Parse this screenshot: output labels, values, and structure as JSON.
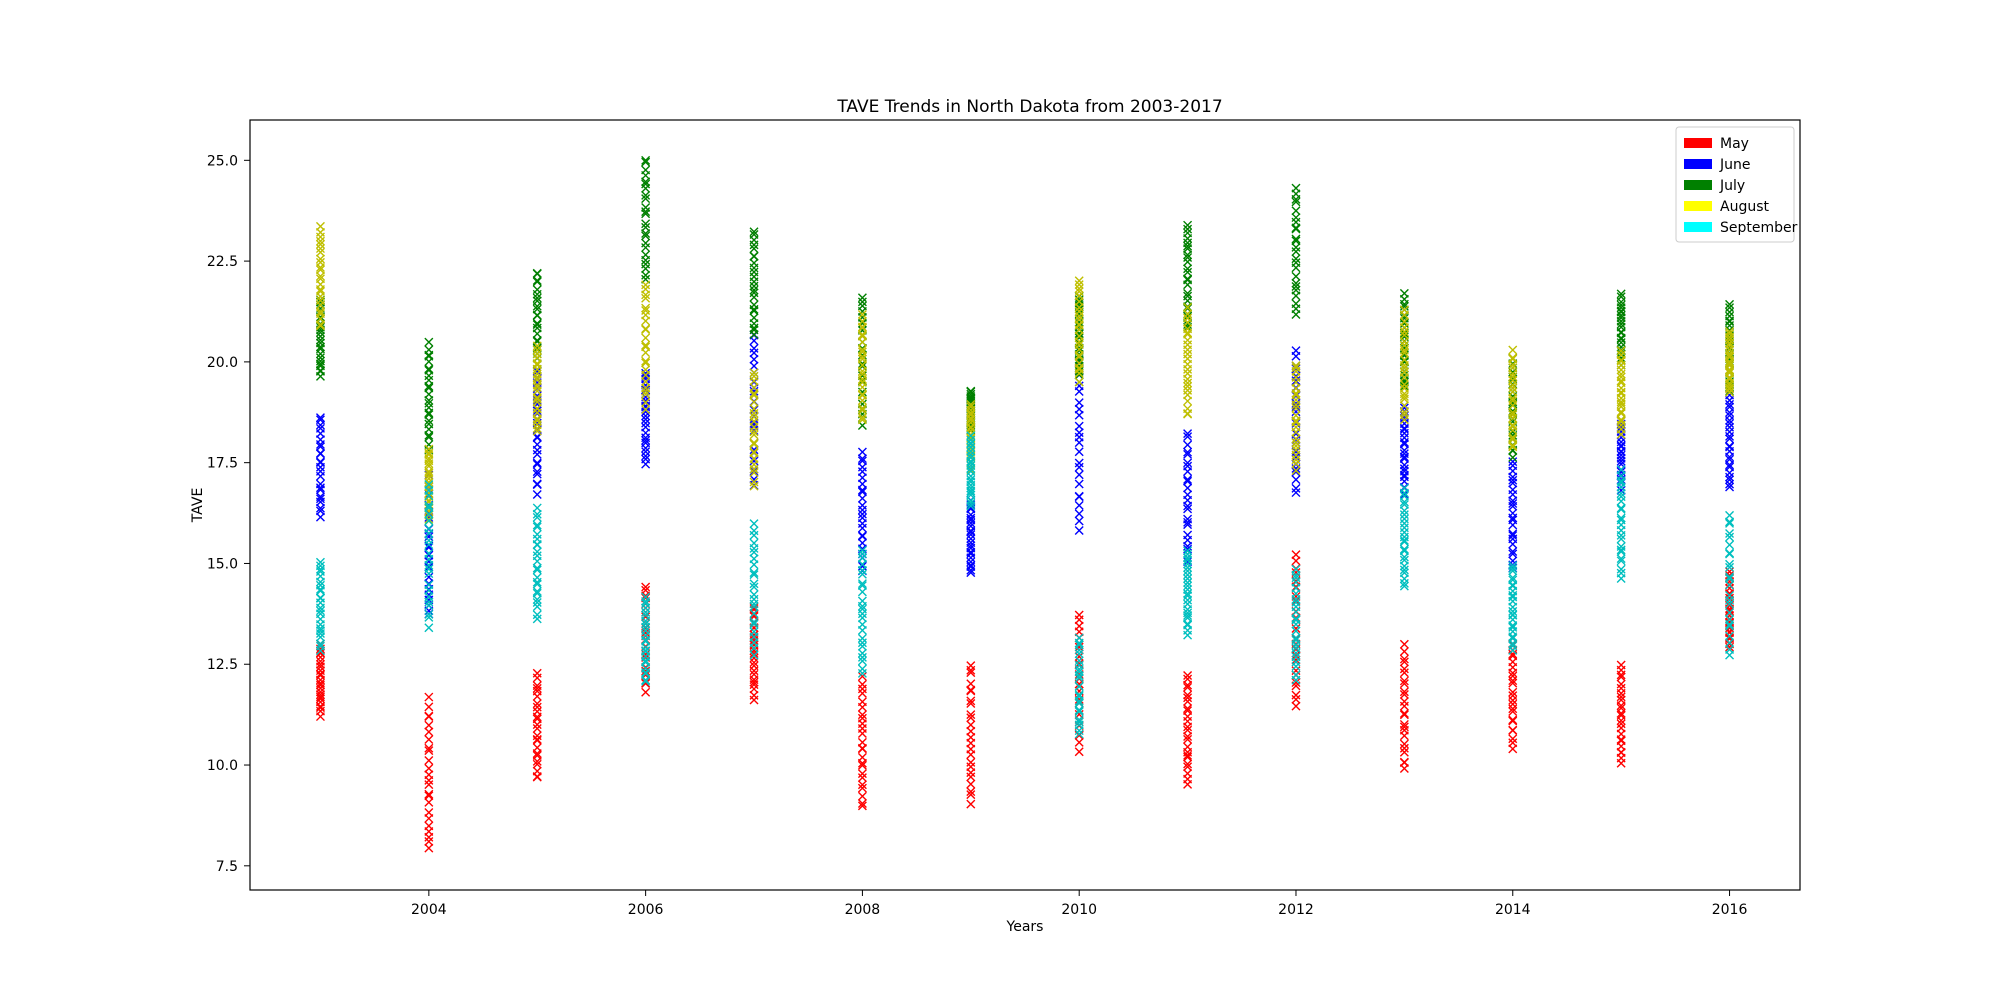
{
  "chart_data": {
    "type": "scatter",
    "title": "TAVE Trends in North Dakota from 2003-2017",
    "xlabel": "Years",
    "ylabel": "TAVE",
    "xlim": [
      2002.35,
      2016.65
    ],
    "ylim": [
      6.9,
      26.0
    ],
    "xticks": [
      2004,
      2006,
      2008,
      2010,
      2012,
      2014,
      2016
    ],
    "yticks": [
      7.5,
      10.0,
      12.5,
      15.0,
      17.5,
      20.0,
      22.5,
      25.0
    ],
    "xtick_labels": [
      "2004",
      "2006",
      "2008",
      "2010",
      "2012",
      "2014",
      "2016"
    ],
    "ytick_labels": [
      "7.5",
      "10.0",
      "12.5",
      "15.0",
      "17.5",
      "20.0",
      "22.5",
      "25.0"
    ],
    "marker": "x",
    "grid": false,
    "legend_position": "top-right",
    "legend": [
      {
        "label": "May",
        "color": "#ff0000"
      },
      {
        "label": "June",
        "color": "#0000ff"
      },
      {
        "label": "July",
        "color": "#008000"
      },
      {
        "label": "August",
        "color": "#ffff00"
      },
      {
        "label": "September",
        "color": "#00ffff"
      }
    ],
    "series": [
      {
        "name": "May",
        "color": "#ff0000",
        "ranges": [
          [
            2003,
            11.2,
            13.0
          ],
          [
            2004,
            7.8,
            11.7
          ],
          [
            2005,
            9.6,
            12.3
          ],
          [
            2006,
            11.8,
            14.5
          ],
          [
            2007,
            11.6,
            14.0
          ],
          [
            2008,
            8.9,
            12.2
          ],
          [
            2009,
            9.0,
            12.6
          ],
          [
            2010,
            10.3,
            13.8
          ],
          [
            2011,
            9.5,
            12.3
          ],
          [
            2012,
            11.3,
            15.3
          ],
          [
            2013,
            9.8,
            13.0
          ],
          [
            2014,
            10.4,
            13.2
          ],
          [
            2015,
            10.0,
            12.5
          ],
          [
            2016,
            12.9,
            14.8
          ]
        ]
      },
      {
        "name": "June",
        "color": "#0000ff",
        "ranges": [
          [
            2003,
            16.1,
            18.7
          ],
          [
            2004,
            13.6,
            17.2
          ],
          [
            2005,
            16.7,
            19.8
          ],
          [
            2006,
            17.4,
            19.8
          ],
          [
            2007,
            16.8,
            20.8
          ],
          [
            2008,
            14.8,
            17.8
          ],
          [
            2009,
            14.7,
            16.6
          ],
          [
            2010,
            15.7,
            20.3
          ],
          [
            2011,
            15.0,
            18.3
          ],
          [
            2012,
            16.7,
            20.3
          ],
          [
            2013,
            16.7,
            18.9
          ],
          [
            2014,
            14.8,
            17.6
          ],
          [
            2015,
            16.8,
            18.6
          ],
          [
            2016,
            16.8,
            19.2
          ]
        ]
      },
      {
        "name": "July",
        "color": "#008000",
        "ranges": [
          [
            2003,
            19.6,
            21.6
          ],
          [
            2004,
            17.8,
            20.5
          ],
          [
            2005,
            19.8,
            22.3
          ],
          [
            2006,
            22.0,
            25.1
          ],
          [
            2007,
            20.6,
            23.3
          ],
          [
            2008,
            18.4,
            21.7
          ],
          [
            2009,
            18.3,
            19.3
          ],
          [
            2010,
            19.5,
            21.7
          ],
          [
            2011,
            20.8,
            23.5
          ],
          [
            2012,
            21.1,
            24.4
          ],
          [
            2013,
            19.3,
            21.7
          ],
          [
            2014,
            17.6,
            20.1
          ],
          [
            2015,
            19.9,
            21.7
          ],
          [
            2016,
            19.2,
            21.5
          ]
        ]
      },
      {
        "name": "August",
        "color": "#bfbf00",
        "ranges": [
          [
            2003,
            20.8,
            23.4
          ],
          [
            2004,
            16.0,
            17.9
          ],
          [
            2005,
            18.2,
            20.4
          ],
          [
            2006,
            18.8,
            22.0
          ],
          [
            2007,
            16.9,
            19.8
          ],
          [
            2008,
            18.5,
            21.2
          ],
          [
            2009,
            17.3,
            19.0
          ],
          [
            2010,
            19.5,
            22.1
          ],
          [
            2011,
            18.6,
            21.4
          ],
          [
            2012,
            17.3,
            20.0
          ],
          [
            2013,
            18.5,
            21.3
          ],
          [
            2014,
            17.8,
            20.3
          ],
          [
            2015,
            18.2,
            20.3
          ],
          [
            2016,
            19.2,
            20.8
          ]
        ]
      },
      {
        "name": "September",
        "color": "#00bfbf",
        "ranges": [
          [
            2003,
            12.8,
            15.1
          ],
          [
            2004,
            13.4,
            17.0
          ],
          [
            2005,
            13.6,
            16.4
          ],
          [
            2006,
            12.0,
            14.2
          ],
          [
            2007,
            12.7,
            16.0
          ],
          [
            2008,
            12.2,
            15.4
          ],
          [
            2009,
            16.4,
            18.2
          ],
          [
            2010,
            10.7,
            13.2
          ],
          [
            2011,
            13.2,
            15.4
          ],
          [
            2012,
            12.1,
            14.9
          ],
          [
            2013,
            14.4,
            16.9
          ],
          [
            2014,
            12.8,
            15.0
          ],
          [
            2015,
            14.6,
            17.4
          ],
          [
            2016,
            12.7,
            16.3
          ]
        ]
      }
    ]
  }
}
